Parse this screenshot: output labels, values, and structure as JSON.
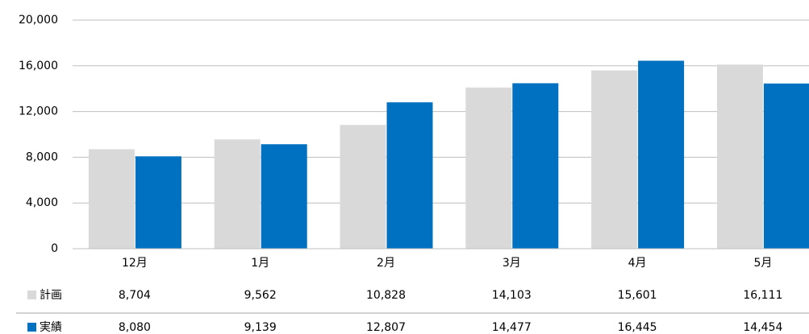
{
  "chart_data": {
    "type": "bar",
    "categories": [
      "12月",
      "1月",
      "2月",
      "3月",
      "4月",
      "5月"
    ],
    "series": [
      {
        "name": "計画",
        "color": "#d9d9d9",
        "values": [
          8704,
          9562,
          10828,
          14103,
          15601,
          16111
        ],
        "value_labels": [
          "8,704",
          "9,562",
          "10,828",
          "14,103",
          "15,601",
          "16,111"
        ]
      },
      {
        "name": "実績",
        "color": "#0070c0",
        "values": [
          8080,
          9139,
          12807,
          14477,
          16445,
          14454
        ],
        "value_labels": [
          "8,080",
          "9,139",
          "12,807",
          "14,477",
          "16,445",
          "14,454"
        ]
      }
    ],
    "ylim": [
      0,
      20000
    ],
    "yticks": [
      {
        "value": 0,
        "label": "0"
      },
      {
        "value": 4000,
        "label": "4,000"
      },
      {
        "value": 8000,
        "label": "8,000"
      },
      {
        "value": 12000,
        "label": "12,000"
      },
      {
        "value": 16000,
        "label": "16,000"
      },
      {
        "value": 20000,
        "label": "20,000"
      }
    ],
    "grid": true
  }
}
